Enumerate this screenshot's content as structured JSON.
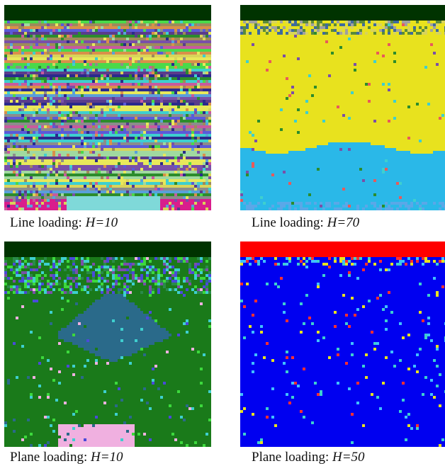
{
  "panels": [
    {
      "caption_prefix": "Line loading: ",
      "caption_param": "H=10",
      "top_bar_color": "#003300",
      "pattern": "stripes",
      "palette": [
        "#d9d45a",
        "#3ecfcf",
        "#7a4fa8",
        "#9e8a5a",
        "#2c8c2c",
        "#5a5ad9",
        "#e8e85a",
        "#c85a9e",
        "#5aa0d9",
        "#8c8c8c",
        "#4ad94a",
        "#d9904a",
        "#5a3c8c",
        "#2a2a8c",
        "#a0d9a0"
      ]
    },
    {
      "caption_prefix": "Line loading: ",
      "caption_param": "H=70",
      "top_bar_color": "#003300",
      "pattern": "two-layer",
      "palette": [
        "#e8e21e",
        "#2ab8e8"
      ]
    },
    {
      "caption_prefix": "Plane loading: ",
      "caption_param": "H=10",
      "top_bar_color": "#003300",
      "pattern": "grains",
      "palette": [
        "#1a7a1a",
        "#2a6a8a",
        "#3cd93c",
        "#4a4ad9",
        "#3ecfcf",
        "#f0b0e0"
      ]
    },
    {
      "caption_prefix": "Plane loading: ",
      "caption_param": "H=50",
      "top_bar_color": "#ff0000",
      "pattern": "uniform",
      "palette": [
        "#0000f0",
        "#3ecfcf",
        "#e8e21e",
        "#ff3030",
        "#40c0ff"
      ]
    }
  ]
}
